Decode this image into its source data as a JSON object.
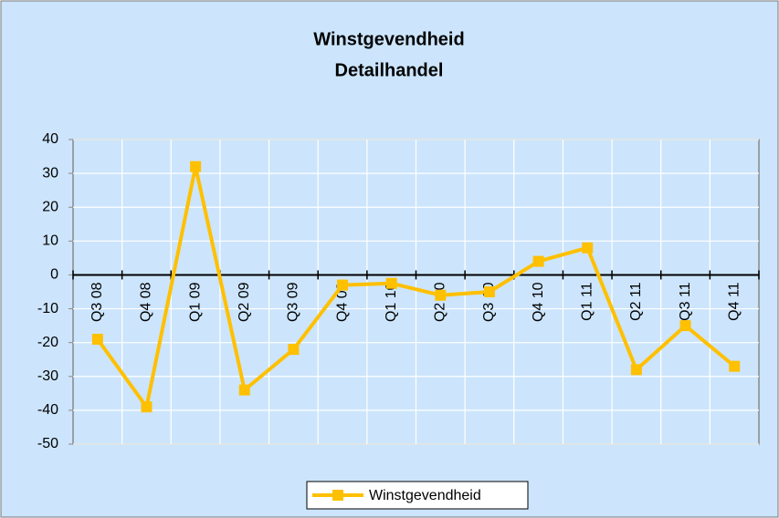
{
  "chart_data": {
    "type": "line",
    "title": "Winstgevendheid",
    "subtitle": "Detailhandel",
    "categories": [
      "Q3 08",
      "Q4 08",
      "Q1 09",
      "Q2 09",
      "Q3 09",
      "Q4 09",
      "Q1 10",
      "Q2 10",
      "Q3 10",
      "Q4 10",
      "Q1 11",
      "Q2 11",
      "Q3 11",
      "Q4 11"
    ],
    "series": [
      {
        "name": "Winstgevendheid",
        "color": "#ffc000",
        "values": [
          -19,
          -39,
          32,
          -34,
          -22,
          -3,
          -2.5,
          -6,
          -5,
          4,
          8,
          -28,
          -15,
          -27
        ]
      }
    ],
    "ylim": [
      -50,
      40
    ],
    "yticks": [
      -50,
      -40,
      -30,
      -20,
      -10,
      0,
      10,
      20,
      30,
      40
    ],
    "grid": true,
    "legend": "bottom"
  }
}
